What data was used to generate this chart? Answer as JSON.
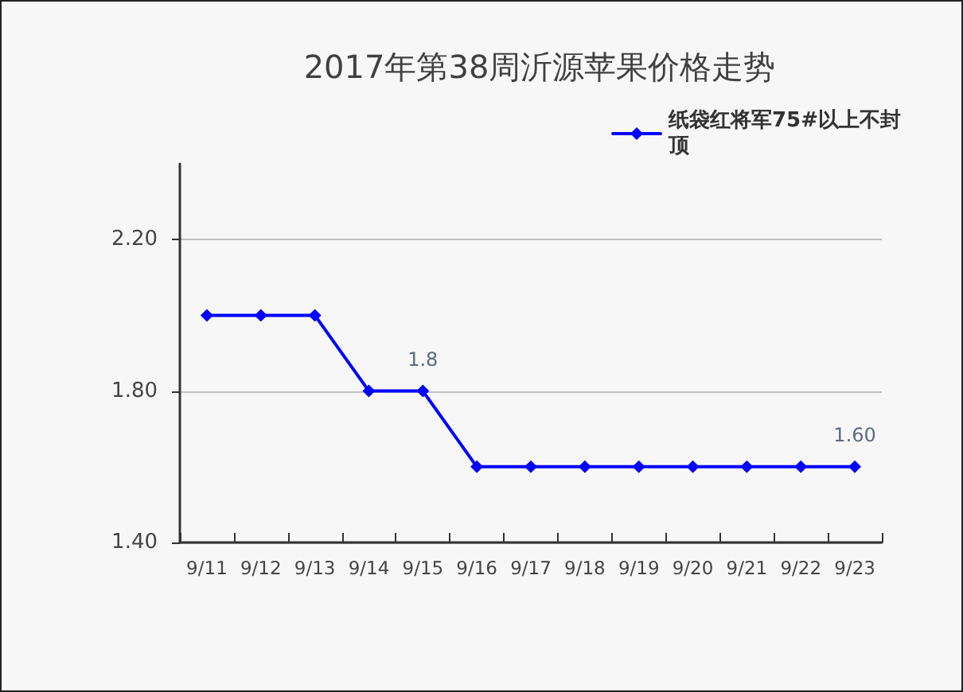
{
  "chart_data": {
    "type": "line",
    "title": "2017年第38周沂源苹果价格走势",
    "categories": [
      "9/11",
      "9/12",
      "9/13",
      "9/14",
      "9/15",
      "9/16",
      "9/17",
      "9/18",
      "9/19",
      "9/20",
      "9/21",
      "9/22",
      "9/23"
    ],
    "series": [
      {
        "name": "纸袋红将军75#以上不封顶",
        "color": "#0000ff",
        "values": [
          2.0,
          2.0,
          2.0,
          1.8,
          1.8,
          1.6,
          1.6,
          1.6,
          1.6,
          1.6,
          1.6,
          1.6,
          1.6
        ],
        "value_labels": [
          null,
          null,
          null,
          null,
          "1.8",
          null,
          null,
          null,
          null,
          null,
          null,
          null,
          "1.60"
        ]
      }
    ],
    "ylim": [
      1.4,
      2.4
    ],
    "yticks": [
      {
        "value": 1.4,
        "label": "1.40"
      },
      {
        "value": 1.8,
        "label": "1.80"
      },
      {
        "value": 2.2,
        "label": "2.20"
      }
    ],
    "grid": "y",
    "legend": "top right",
    "marker": "diamond",
    "line_style": "solid"
  }
}
